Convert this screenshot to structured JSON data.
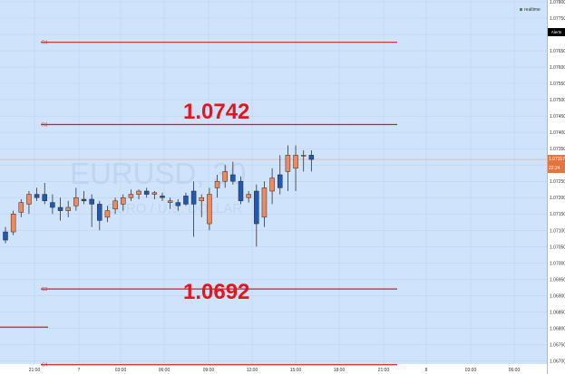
{
  "header": {
    "realtime_label": "realtime",
    "alerts_label": "Alerts"
  },
  "watermark": {
    "symbol": "EURUSD, 30",
    "description": "EURO / U.S. DOLLAR"
  },
  "price_tags": {
    "last_price": "1.07317",
    "countdown": "22:24"
  },
  "annotations": {
    "r3_value": "1.0742",
    "s3_value": "1.0692"
  },
  "colors": {
    "background": "#cfe3fb",
    "grid": "#b8d2f1",
    "up_candle": "#f08a5d",
    "down_candle": "#1f58b5",
    "level_line": "#d31f1f",
    "annotation_text": "#e8141c",
    "price_tag": "#e8743b",
    "countdown_tag": "#e8743b"
  },
  "chart_data": {
    "type": "candlestick",
    "symbol": "EURUSD, 30",
    "ylim": [
      1.0669,
      1.078
    ],
    "y_ticks": [
      "1.07800",
      "1.07750",
      "1.07700",
      "1.07650",
      "1.07600",
      "1.07550",
      "1.07500",
      "1.07450",
      "1.07400",
      "1.07350",
      "1.07300",
      "1.07250",
      "1.07200",
      "1.07150",
      "1.07100",
      "1.07050",
      "1.07000",
      "1.06950",
      "1.06900",
      "1.06850",
      "1.06800",
      "1.06750",
      "1.06700"
    ],
    "x_ticks": [
      "21:00",
      "7",
      "03:00",
      "06:00",
      "09:00",
      "12:00",
      "15:00",
      "18:00",
      "21:00",
      "8",
      "03:00",
      "06:00"
    ],
    "levels": [
      {
        "label": "R4",
        "value": 1.07676,
        "end_index": 49
      },
      {
        "label": "R3",
        "value": 1.07424,
        "end_index": 49
      },
      {
        "label": "S3",
        "value": 1.0692,
        "end_index": 49
      },
      {
        "label": "S4",
        "value": 1.06688,
        "end_index": 49
      },
      {
        "label": "",
        "value": 1.06803,
        "start_index": -1,
        "end_index": 5
      }
    ],
    "candles": [
      {
        "o": 1.07095,
        "h": 1.0711,
        "l": 1.0706,
        "c": 1.0707
      },
      {
        "o": 1.07095,
        "h": 1.0716,
        "l": 1.07085,
        "c": 1.0715
      },
      {
        "o": 1.07155,
        "h": 1.07195,
        "l": 1.0714,
        "c": 1.07185
      },
      {
        "o": 1.0718,
        "h": 1.0722,
        "l": 1.0715,
        "c": 1.0721
      },
      {
        "o": 1.0721,
        "h": 1.0723,
        "l": 1.0719,
        "c": 1.072
      },
      {
        "o": 1.0721,
        "h": 1.07245,
        "l": 1.0718,
        "c": 1.0719
      },
      {
        "o": 1.07185,
        "h": 1.0721,
        "l": 1.0715,
        "c": 1.0717
      },
      {
        "o": 1.0717,
        "h": 1.072,
        "l": 1.0713,
        "c": 1.0716
      },
      {
        "o": 1.0716,
        "h": 1.0719,
        "l": 1.0714,
        "c": 1.0717
      },
      {
        "o": 1.07175,
        "h": 1.0723,
        "l": 1.0716,
        "c": 1.072
      },
      {
        "o": 1.07195,
        "h": 1.0722,
        "l": 1.0718,
        "c": 1.0719
      },
      {
        "o": 1.07195,
        "h": 1.0721,
        "l": 1.0711,
        "c": 1.0718
      },
      {
        "o": 1.0718,
        "h": 1.0719,
        "l": 1.071,
        "c": 1.0713
      },
      {
        "o": 1.0714,
        "h": 1.07175,
        "l": 1.07125,
        "c": 1.0716
      },
      {
        "o": 1.07165,
        "h": 1.072,
        "l": 1.0715,
        "c": 1.0719
      },
      {
        "o": 1.0718,
        "h": 1.0721,
        "l": 1.0716,
        "c": 1.072
      },
      {
        "o": 1.072,
        "h": 1.07225,
        "l": 1.0719,
        "c": 1.0721
      },
      {
        "o": 1.0721,
        "h": 1.07225,
        "l": 1.07195,
        "c": 1.0722
      },
      {
        "o": 1.0722,
        "h": 1.0723,
        "l": 1.072,
        "c": 1.0721
      },
      {
        "o": 1.0721,
        "h": 1.0722,
        "l": 1.07195,
        "c": 1.07215
      },
      {
        "o": 1.07205,
        "h": 1.07215,
        "l": 1.0719,
        "c": 1.072
      },
      {
        "o": 1.07185,
        "h": 1.072,
        "l": 1.07165,
        "c": 1.0719
      },
      {
        "o": 1.07185,
        "h": 1.07195,
        "l": 1.0716,
        "c": 1.07175
      },
      {
        "o": 1.07205,
        "h": 1.07215,
        "l": 1.07175,
        "c": 1.0718
      },
      {
        "o": 1.0722,
        "h": 1.0725,
        "l": 1.0708,
        "c": 1.0718
      },
      {
        "o": 1.0719,
        "h": 1.0721,
        "l": 1.0714,
        "c": 1.072
      },
      {
        "o": 1.0712,
        "h": 1.0723,
        "l": 1.071,
        "c": 1.0721
      },
      {
        "o": 1.0723,
        "h": 1.0727,
        "l": 1.072,
        "c": 1.0725
      },
      {
        "o": 1.0725,
        "h": 1.073,
        "l": 1.0723,
        "c": 1.0728
      },
      {
        "o": 1.0727,
        "h": 1.0731,
        "l": 1.0724,
        "c": 1.0725
      },
      {
        "o": 1.0725,
        "h": 1.07265,
        "l": 1.0718,
        "c": 1.0719
      },
      {
        "o": 1.072,
        "h": 1.0722,
        "l": 1.07185,
        "c": 1.0721
      },
      {
        "o": 1.0722,
        "h": 1.0724,
        "l": 1.0705,
        "c": 1.0712
      },
      {
        "o": 1.0714,
        "h": 1.0725,
        "l": 1.0711,
        "c": 1.0723
      },
      {
        "o": 1.0722,
        "h": 1.0729,
        "l": 1.0718,
        "c": 1.0726
      },
      {
        "o": 1.0727,
        "h": 1.0733,
        "l": 1.0721,
        "c": 1.0723
      },
      {
        "o": 1.0728,
        "h": 1.0736,
        "l": 1.0722,
        "c": 1.0733
      },
      {
        "o": 1.0729,
        "h": 1.0736,
        "l": 1.0722,
        "c": 1.0733
      },
      {
        "o": 1.0733,
        "h": 1.07345,
        "l": 1.0728,
        "c": 1.0733
      },
      {
        "o": 1.0733,
        "h": 1.07345,
        "l": 1.0728,
        "c": 1.07317
      }
    ]
  }
}
